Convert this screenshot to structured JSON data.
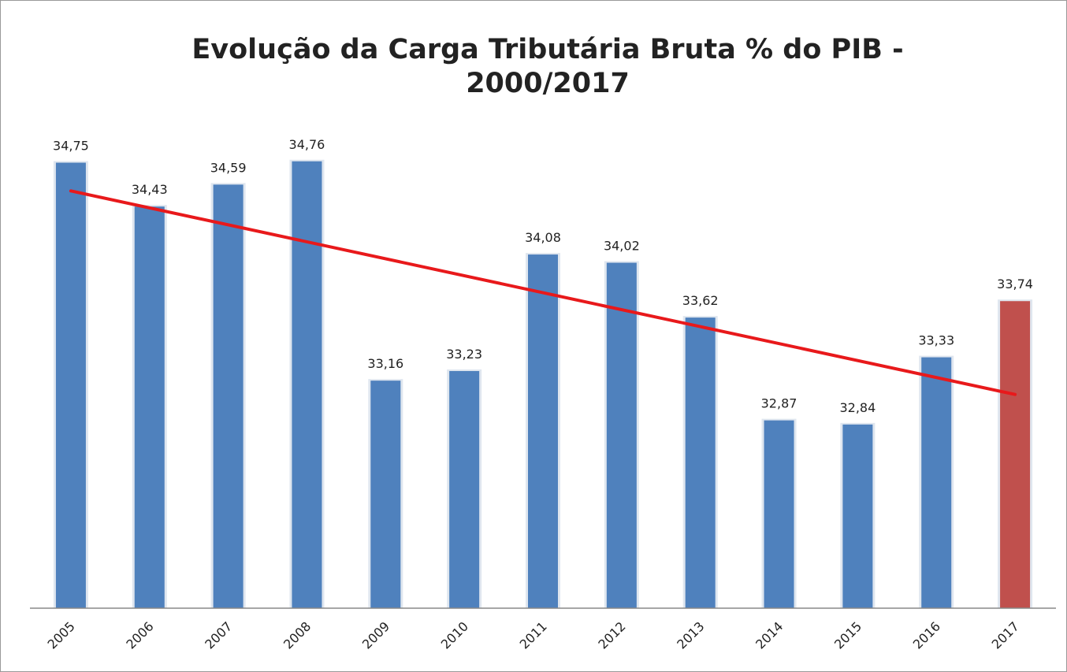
{
  "chart_data": {
    "type": "bar",
    "title": [
      "Evolução da Carga Tributária Bruta % do PIB -",
      "2000/2017"
    ],
    "categories": [
      "2005",
      "2006",
      "2007",
      "2008",
      "2009",
      "2010",
      "2011",
      "2012",
      "2013",
      "2014",
      "2015",
      "2016",
      "2017"
    ],
    "values": [
      34.75,
      34.43,
      34.59,
      34.76,
      33.16,
      33.23,
      34.08,
      34.02,
      33.62,
      32.87,
      32.84,
      33.33,
      33.74
    ],
    "value_labels": [
      "34,75",
      "34,43",
      "34,59",
      "34,76",
      "33,16",
      "33,23",
      "34,08",
      "34,02",
      "33,62",
      "32,87",
      "32,84",
      "33,33",
      "33,74"
    ],
    "colors": [
      "#4f81bd",
      "#4f81bd",
      "#4f81bd",
      "#4f81bd",
      "#4f81bd",
      "#4f81bd",
      "#4f81bd",
      "#4f81bd",
      "#4f81bd",
      "#4f81bd",
      "#4f81bd",
      "#4f81bd",
      "#c0504d"
    ],
    "ylim": [
      31.5,
      35
    ],
    "trendline": "linear",
    "trendline_color": "#e8191b"
  }
}
